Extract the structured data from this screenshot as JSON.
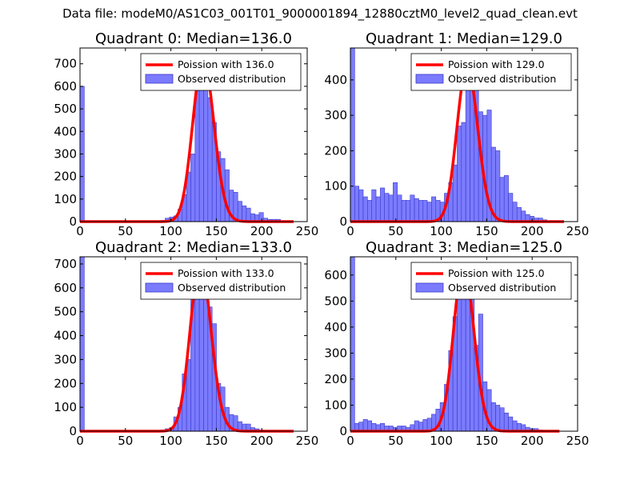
{
  "figure": {
    "suptitle": "Data file: modeM0/AS1C03_001T01_9000001894_12880cztM0_level2_quad_clean.evt"
  },
  "colors": {
    "observed_fill": "#7b7bff",
    "observed_edge": "#3a3ac8",
    "poisson_line": "#ff0000"
  },
  "chart_data": [
    {
      "type": "bar",
      "title": "Quadrant 0: Median=136.0",
      "xlabel": "",
      "ylabel": "",
      "xlim": [
        0,
        250
      ],
      "ylim": [
        0,
        770
      ],
      "xticks": [
        "0",
        "50",
        "100",
        "150",
        "200",
        "250"
      ],
      "yticks": [
        "0",
        "100",
        "200",
        "300",
        "400",
        "500",
        "600",
        "700"
      ],
      "legend": {
        "placement": "top-right",
        "entries": [
          "Poission with 136.0",
          "Observed distribution"
        ]
      },
      "poisson_mean": 136.0,
      "poisson_range": [
        0,
        235
      ],
      "observed": {
        "name": "Observed distribution",
        "bin_width": 4.7,
        "bins": [
          [
            0,
            4.7,
            600
          ],
          [
            89,
            93.7,
            5
          ],
          [
            93.7,
            98.4,
            15
          ],
          [
            98.4,
            103.1,
            20
          ],
          [
            103.1,
            107.8,
            25
          ],
          [
            107.8,
            112.5,
            55
          ],
          [
            112.5,
            117.2,
            120
          ],
          [
            117.2,
            121.9,
            220
          ],
          [
            121.9,
            126.6,
            300
          ],
          [
            126.6,
            131.3,
            580
          ],
          [
            131.3,
            136,
            720
          ],
          [
            136,
            140.7,
            680
          ],
          [
            140.7,
            145.4,
            550
          ],
          [
            145.4,
            150.1,
            440
          ],
          [
            150.1,
            154.8,
            310
          ],
          [
            154.8,
            159.5,
            280
          ],
          [
            159.5,
            164.2,
            230
          ],
          [
            164.2,
            168.9,
            140
          ],
          [
            168.9,
            173.6,
            130
          ],
          [
            173.6,
            178.3,
            90
          ],
          [
            178.3,
            183,
            70
          ],
          [
            183,
            187.7,
            60
          ],
          [
            187.7,
            192.4,
            35
          ],
          [
            192.4,
            197.1,
            30
          ],
          [
            197.1,
            201.8,
            40
          ],
          [
            201.8,
            206.5,
            15
          ],
          [
            206.5,
            211.2,
            10
          ],
          [
            211.2,
            215.9,
            10
          ],
          [
            215.9,
            220.6,
            10
          ]
        ]
      }
    },
    {
      "type": "bar",
      "title": "Quadrant 1: Median=129.0",
      "xlabel": "",
      "ylabel": "",
      "xlim": [
        0,
        250
      ],
      "ylim": [
        0,
        490
      ],
      "xticks": [
        "0",
        "50",
        "100",
        "150",
        "200",
        "250"
      ],
      "yticks": [
        "0",
        "100",
        "200",
        "300",
        "400"
      ],
      "legend": {
        "placement": "top-right",
        "entries": [
          "Poission with 129.0",
          "Observed distribution"
        ]
      },
      "poisson_mean": 129.0,
      "poisson_range": [
        0,
        235
      ],
      "observed": {
        "name": "Observed distribution",
        "bin_width": 4.7,
        "bins": [
          [
            0,
            4.7,
            490
          ],
          [
            4.7,
            9.4,
            100
          ],
          [
            9.4,
            14.1,
            90
          ],
          [
            14.1,
            18.8,
            70
          ],
          [
            18.8,
            23.5,
            60
          ],
          [
            23.5,
            28.2,
            90
          ],
          [
            28.2,
            32.9,
            70
          ],
          [
            32.9,
            37.6,
            95
          ],
          [
            37.6,
            42.3,
            80
          ],
          [
            42.3,
            47,
            75
          ],
          [
            47,
            51.7,
            110
          ],
          [
            51.7,
            56.4,
            75
          ],
          [
            56.4,
            61.1,
            60
          ],
          [
            61.1,
            65.8,
            60
          ],
          [
            65.8,
            70.5,
            75
          ],
          [
            70.5,
            75.2,
            65
          ],
          [
            75.2,
            79.9,
            60
          ],
          [
            79.9,
            84.6,
            60
          ],
          [
            84.6,
            89.3,
            55
          ],
          [
            89.3,
            94,
            70
          ],
          [
            94,
            98.7,
            60
          ],
          [
            98.7,
            103.4,
            55
          ],
          [
            103.4,
            108.1,
            80
          ],
          [
            108.1,
            112.8,
            110
          ],
          [
            112.8,
            117.5,
            160
          ],
          [
            117.5,
            122.2,
            270
          ],
          [
            122.2,
            126.9,
            280
          ],
          [
            126.9,
            131.6,
            440
          ],
          [
            131.6,
            136.3,
            430
          ],
          [
            136.3,
            141,
            390
          ],
          [
            141,
            145.7,
            310
          ],
          [
            145.7,
            150.4,
            300
          ],
          [
            150.4,
            155.1,
            315
          ],
          [
            155.1,
            159.8,
            210
          ],
          [
            159.8,
            164.5,
            200
          ],
          [
            164.5,
            169.2,
            125
          ],
          [
            169.2,
            173.9,
            130
          ],
          [
            173.9,
            178.6,
            80
          ],
          [
            178.6,
            183.3,
            55
          ],
          [
            183.3,
            188,
            40
          ],
          [
            188,
            192.7,
            30
          ],
          [
            192.7,
            197.4,
            20
          ],
          [
            197.4,
            202.1,
            15
          ],
          [
            202.1,
            206.8,
            10
          ],
          [
            206.8,
            211.5,
            10
          ],
          [
            211.5,
            216.2,
            5
          ]
        ]
      }
    },
    {
      "type": "bar",
      "title": "Quadrant 2: Median=133.0",
      "xlabel": "",
      "ylabel": "",
      "xlim": [
        0,
        250
      ],
      "ylim": [
        0,
        730
      ],
      "xticks": [
        "0",
        "50",
        "100",
        "150",
        "200",
        "250"
      ],
      "yticks": [
        "0",
        "100",
        "200",
        "300",
        "400",
        "500",
        "600",
        "700"
      ],
      "legend": {
        "placement": "top-right",
        "entries": [
          "Poission with 133.0",
          "Observed distribution"
        ]
      },
      "poisson_mean": 133.0,
      "poisson_range": [
        0,
        235
      ],
      "observed": {
        "name": "Observed distribution",
        "bin_width": 4.7,
        "bins": [
          [
            0,
            4.7,
            730
          ],
          [
            89,
            93.7,
            5
          ],
          [
            93.7,
            98.4,
            10
          ],
          [
            98.4,
            103.1,
            15
          ],
          [
            103.1,
            107.8,
            60
          ],
          [
            107.8,
            112.5,
            100
          ],
          [
            112.5,
            117.2,
            240
          ],
          [
            117.2,
            121.9,
            300
          ],
          [
            121.9,
            126.6,
            560
          ],
          [
            126.6,
            131.3,
            570
          ],
          [
            131.3,
            136,
            700
          ],
          [
            136,
            140.7,
            650
          ],
          [
            140.7,
            145.4,
            520
          ],
          [
            145.4,
            150.1,
            450
          ],
          [
            150.1,
            154.8,
            200
          ],
          [
            154.8,
            159.5,
            185
          ],
          [
            159.5,
            164.2,
            100
          ],
          [
            164.2,
            168.9,
            70
          ],
          [
            168.9,
            173.6,
            65
          ],
          [
            173.6,
            178.3,
            40
          ],
          [
            178.3,
            183,
            30
          ],
          [
            183,
            187.7,
            30
          ],
          [
            187.7,
            192.4,
            15
          ],
          [
            192.4,
            197.1,
            10
          ],
          [
            197.1,
            201.8,
            5
          ]
        ]
      }
    },
    {
      "type": "bar",
      "title": "Quadrant 3: Median=125.0",
      "xlabel": "",
      "ylabel": "",
      "xlim": [
        0,
        250
      ],
      "ylim": [
        0,
        670
      ],
      "xticks": [
        "0",
        "50",
        "100",
        "150",
        "200",
        "250"
      ],
      "yticks": [
        "0",
        "100",
        "200",
        "300",
        "400",
        "500",
        "600"
      ],
      "legend": {
        "placement": "top-right",
        "entries": [
          "Poission with 125.0",
          "Observed distribution"
        ]
      },
      "poisson_mean": 125.0,
      "poisson_range": [
        0,
        230
      ],
      "observed": {
        "name": "Observed distribution",
        "bin_width": 4.7,
        "bins": [
          [
            0,
            4.7,
            670
          ],
          [
            4.7,
            9.4,
            30
          ],
          [
            9.4,
            14.1,
            35
          ],
          [
            14.1,
            18.8,
            45
          ],
          [
            18.8,
            23.5,
            40
          ],
          [
            23.5,
            28.2,
            30
          ],
          [
            28.2,
            32.9,
            25
          ],
          [
            32.9,
            37.6,
            30
          ],
          [
            37.6,
            42.3,
            20
          ],
          [
            42.3,
            47,
            20
          ],
          [
            47,
            51.7,
            15
          ],
          [
            51.7,
            56.4,
            20
          ],
          [
            56.4,
            61.1,
            20
          ],
          [
            61.1,
            65.8,
            15
          ],
          [
            65.8,
            70.5,
            25
          ],
          [
            70.5,
            75.2,
            40
          ],
          [
            75.2,
            79.9,
            35
          ],
          [
            79.9,
            84.6,
            45
          ],
          [
            84.6,
            89.3,
            50
          ],
          [
            89.3,
            94,
            65
          ],
          [
            94,
            98.7,
            85
          ],
          [
            98.7,
            103.4,
            110
          ],
          [
            103.4,
            108.1,
            180
          ],
          [
            108.1,
            112.8,
            310
          ],
          [
            112.8,
            117.5,
            440
          ],
          [
            117.5,
            122.2,
            570
          ],
          [
            122.2,
            126.9,
            640
          ],
          [
            126.9,
            131.6,
            560
          ],
          [
            131.6,
            136.3,
            550
          ],
          [
            136.3,
            141,
            330
          ],
          [
            141,
            145.7,
            450
          ],
          [
            145.7,
            150.4,
            190
          ],
          [
            150.4,
            155.1,
            160
          ],
          [
            155.1,
            159.8,
            110
          ],
          [
            159.8,
            164.5,
            100
          ],
          [
            164.5,
            169.2,
            90
          ],
          [
            169.2,
            173.9,
            70
          ],
          [
            173.9,
            178.6,
            55
          ],
          [
            178.6,
            183.3,
            40
          ],
          [
            183.3,
            188,
            30
          ],
          [
            188,
            192.7,
            25
          ],
          [
            192.7,
            197.4,
            15
          ],
          [
            197.4,
            202.1,
            10
          ],
          [
            202.1,
            206.8,
            10
          ],
          [
            206.8,
            211.5,
            5
          ]
        ]
      }
    }
  ]
}
